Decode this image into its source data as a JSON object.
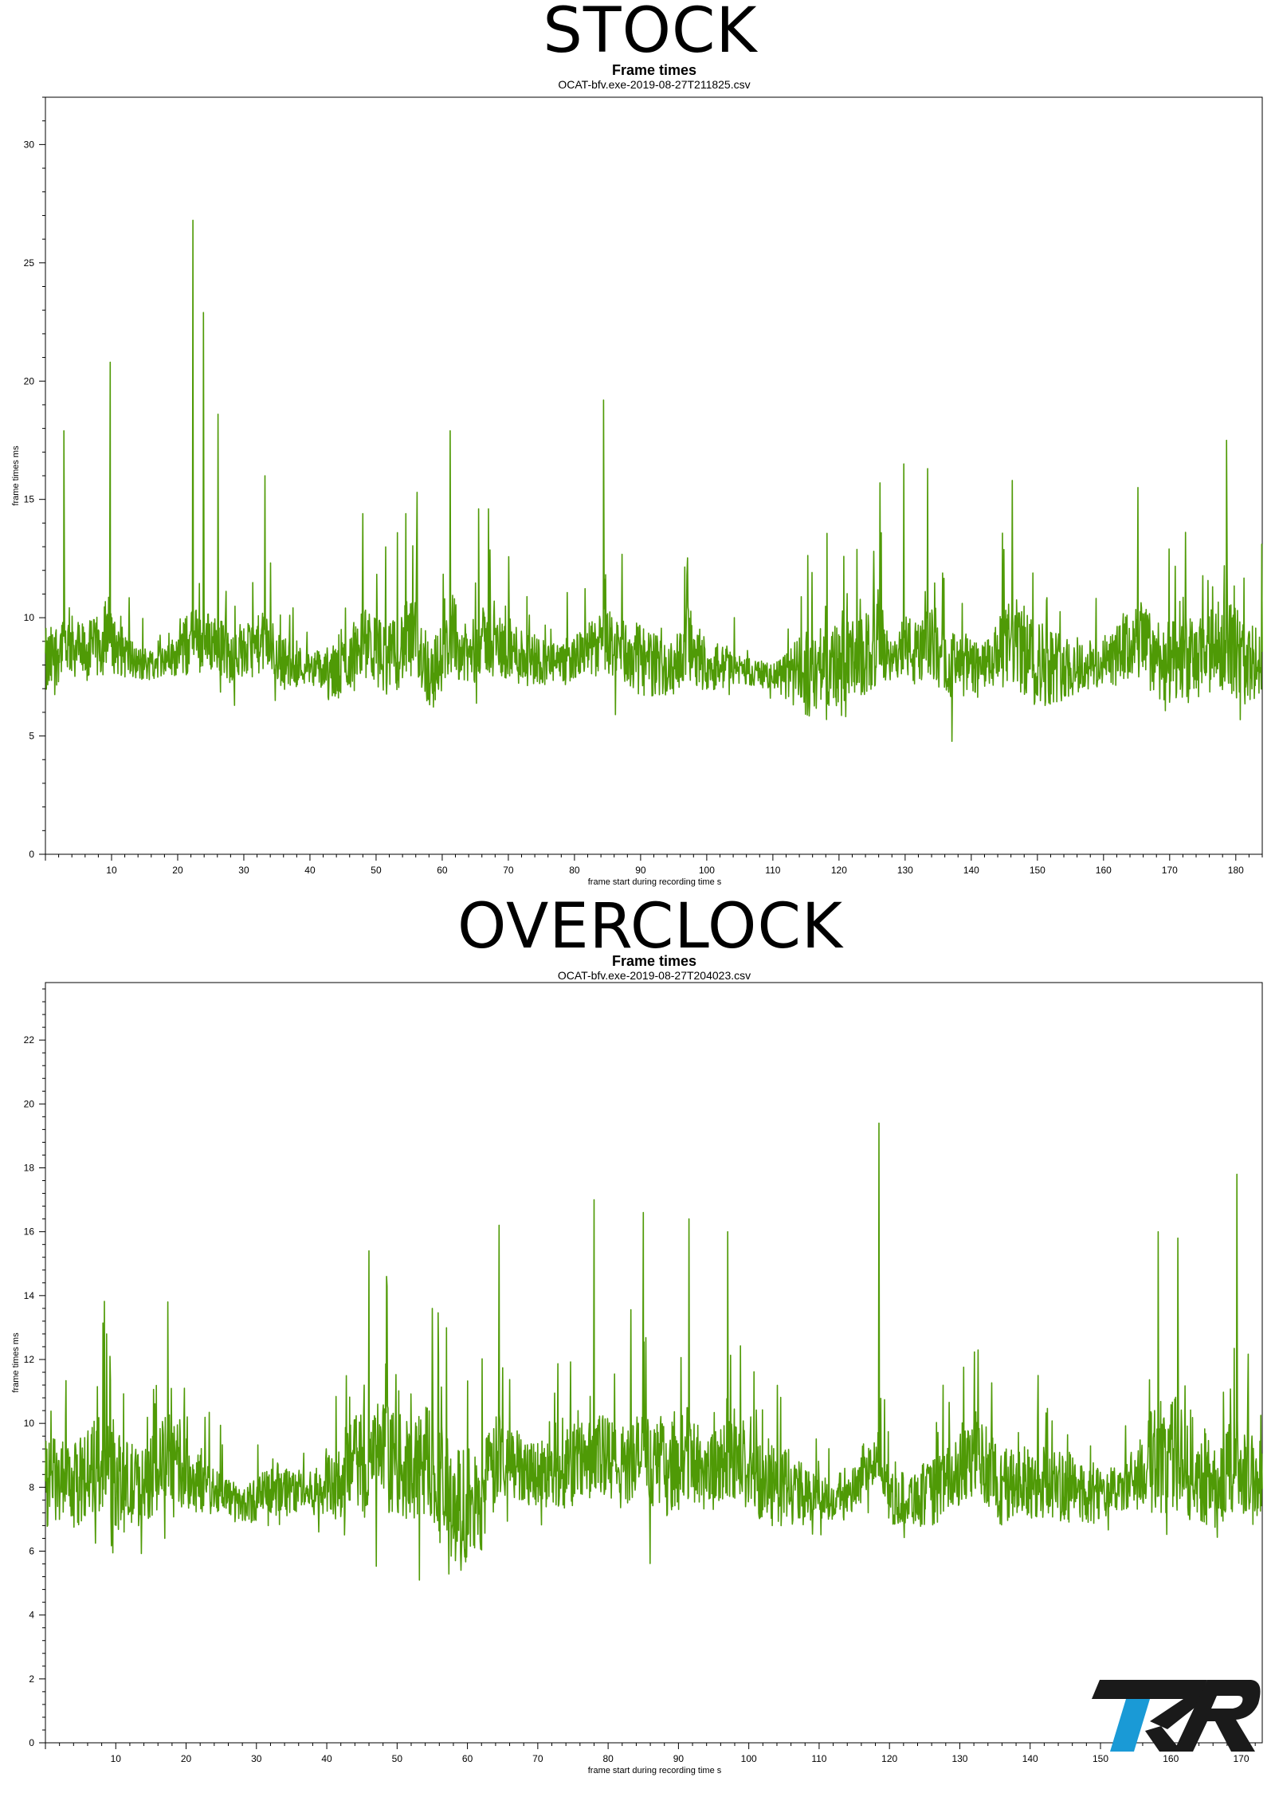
{
  "headings": {
    "stock": "STOCK",
    "overclock": "OVERCLOCK"
  },
  "colors": {
    "series": "#4f9a06",
    "axis": "#000000",
    "logo_dark": "#1a1a1a",
    "logo_blue": "#1a9ad6"
  },
  "logo": {
    "text": "TKR",
    "icon": "tkr-logo"
  },
  "chart_data": [
    {
      "type": "line",
      "title": "Frame times",
      "subtitle": "OCAT-bfv.exe-2019-08-27T211825.csv",
      "xlabel": "frame start during recording time s",
      "ylabel": "frame times ms",
      "xlim": [
        0,
        184
      ],
      "ylim": [
        0,
        32
      ],
      "xticks": [
        10,
        20,
        30,
        40,
        50,
        60,
        70,
        80,
        90,
        100,
        110,
        120,
        130,
        140,
        150,
        160,
        170,
        180
      ],
      "yticks": [
        0,
        5,
        10,
        15,
        20,
        25,
        30
      ],
      "grid": false,
      "series": [
        {
          "x": [
            0.5,
            2.8,
            6,
            9.8,
            14,
            18.5,
            22.3,
            23.9,
            26.1,
            28,
            33.2,
            36,
            40,
            44,
            48,
            52,
            54.5,
            56.2,
            58.4,
            61.2,
            64,
            65.5,
            67,
            72,
            78,
            84.4,
            90,
            95,
            97,
            100,
            105,
            110,
            115,
            118,
            123,
            126.2,
            128,
            129.8,
            132,
            133.4,
            137,
            142,
            146.2,
            150,
            155,
            160,
            165.2,
            170,
            175,
            178.6,
            181,
            184
          ],
          "y": [
            8.0,
            17.9,
            8.5,
            20.8,
            8.0,
            8.2,
            26.8,
            22.9,
            18.6,
            8.2,
            16.0,
            8.1,
            7.9,
            7.6,
            14.4,
            8.2,
            14.4,
            15.3,
            7.5,
            17.9,
            8.3,
            14.6,
            14.6,
            8.4,
            8.0,
            19.2,
            8.2,
            7.8,
            11.8,
            8.0,
            7.8,
            7.5,
            7.6,
            7.9,
            8.1,
            15.7,
            8.0,
            16.5,
            8.2,
            16.3,
            8.0,
            7.9,
            15.8,
            8.1,
            7.9,
            8.0,
            15.5,
            8.0,
            8.3,
            17.5,
            8.2,
            7.8
          ],
          "noise": [
            1.2,
            1.0,
            1.0,
            1.0,
            0.6,
            0.5,
            1.2,
            1.0,
            1.0,
            0.8,
            1.0,
            0.9,
            0.5,
            1.0,
            1.1,
            1.2,
            1.3,
            1.3,
            1.2,
            1.0,
            1.0,
            1.1,
            1.1,
            1.0,
            0.6,
            1.0,
            1.2,
            0.8,
            1.2,
            0.9,
            0.5,
            0.4,
            1.4,
            1.4,
            1.4,
            1.4,
            0.6,
            1.0,
            1.2,
            1.2,
            1.1,
            0.8,
            1.5,
            1.5,
            1.0,
            0.8,
            1.3,
            1.4,
            1.4,
            1.5,
            1.5,
            1.2
          ]
        }
      ]
    },
    {
      "type": "line",
      "title": "Frame times",
      "subtitle": "OCAT-bfv.exe-2019-08-27T204023.csv",
      "xlabel": "frame start during recording time s",
      "ylabel": "frame times ms",
      "xlim": [
        0,
        173
      ],
      "ylim": [
        0,
        23.8
      ],
      "xticks": [
        10,
        20,
        30,
        40,
        50,
        60,
        70,
        80,
        90,
        100,
        110,
        120,
        130,
        140,
        150,
        160,
        170
      ],
      "yticks": [
        0,
        2,
        4,
        6,
        8,
        10,
        12,
        14,
        16,
        18,
        20,
        22
      ],
      "grid": false,
      "series": [
        {
          "x": [
            0.5,
            4,
            8.7,
            10.5,
            14,
            17.4,
            21,
            25,
            28,
            33,
            38,
            40,
            46,
            48.5,
            52,
            55,
            57.8,
            62,
            64.5,
            68,
            72,
            78,
            82,
            85,
            88,
            91.5,
            95,
            97,
            101,
            104,
            109,
            114,
            118.5,
            120,
            126,
            132.6,
            136,
            142,
            148,
            153,
            158.2,
            161,
            164,
            167,
            169.4,
            171,
            173
          ],
          "y": [
            8.2,
            8.0,
            12.8,
            8.1,
            8.0,
            13.8,
            8.2,
            7.9,
            7.4,
            8.0,
            7.8,
            8.1,
            15.4,
            14.6,
            8.4,
            13.6,
            7.2,
            7.6,
            16.2,
            8.6,
            8.4,
            17.0,
            8.6,
            16.6,
            8.5,
            16.4,
            8.4,
            16.0,
            8.3,
            8.2,
            7.7,
            7.6,
            19.4,
            7.6,
            7.8,
            12.3,
            8.0,
            8.2,
            7.8,
            7.9,
            16.0,
            15.8,
            8.4,
            8.1,
            17.8,
            8.2,
            8.3
          ],
          "noise": [
            1.1,
            1.0,
            1.3,
            1.2,
            0.9,
            1.1,
            0.8,
            0.5,
            0.4,
            0.7,
            0.5,
            0.9,
            1.3,
            1.3,
            1.2,
            1.6,
            1.6,
            1.3,
            1.1,
            0.8,
            0.9,
            1.1,
            1.1,
            1.1,
            1.1,
            1.2,
            1.0,
            1.0,
            1.0,
            1.0,
            0.6,
            0.5,
            0.6,
            0.6,
            0.8,
            0.9,
            1.0,
            0.9,
            0.8,
            0.5,
            1.4,
            1.4,
            1.2,
            1.1,
            1.2,
            1.2,
            1.0
          ]
        }
      ]
    }
  ]
}
